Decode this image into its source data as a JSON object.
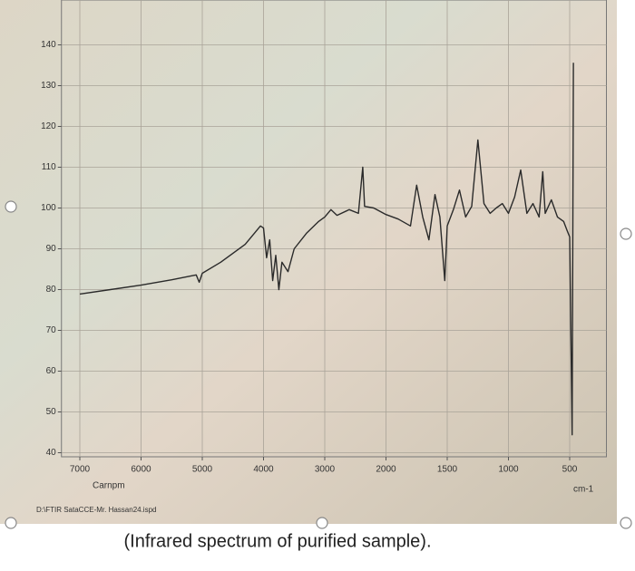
{
  "chart_data": {
    "type": "line",
    "x_label": "Carnpm",
    "x_unit": "cm-1",
    "file_label": "D:\\FTIR SataCCE-Mr. Hassan24.ispd",
    "caption": "(Infrared spectrum of purified sample).",
    "xlim": [
      7300,
      200
    ],
    "xticks": [
      7000,
      6000,
      5000,
      4000,
      3000,
      2000,
      1500,
      1000,
      500
    ],
    "ylim": [
      39,
      151
    ],
    "yticks": [
      40,
      50,
      60,
      70,
      80,
      90,
      100,
      110,
      120,
      130,
      140
    ],
    "grid": true,
    "color": "#2a2a2a",
    "x": [
      7000,
      6500,
      6000,
      5500,
      5100,
      5050,
      5000,
      4700,
      4300,
      4050,
      4000,
      3950,
      3900,
      3850,
      3800,
      3750,
      3700,
      3600,
      3500,
      3300,
      3100,
      3000,
      2900,
      2800,
      2600,
      2450,
      2380,
      2350,
      2200,
      2000,
      1900,
      1800,
      1750,
      1700,
      1650,
      1600,
      1560,
      1520,
      1500,
      1450,
      1400,
      1350,
      1300,
      1250,
      1200,
      1150,
      1100,
      1050,
      1000,
      950,
      900,
      850,
      800,
      750,
      720,
      700,
      650,
      600,
      550,
      520,
      500,
      480,
      470
    ],
    "values": [
      78.9,
      80,
      81.1,
      82.4,
      83.6,
      81.8,
      84,
      86.7,
      91.1,
      95.6,
      95.1,
      87.8,
      92.2,
      82.2,
      88.4,
      80,
      86.7,
      84.4,
      90,
      93.8,
      96.7,
      97.8,
      99.6,
      98.2,
      99.6,
      98.7,
      110,
      100.4,
      100,
      98.4,
      97.3,
      95.6,
      105.6,
      97.8,
      92.2,
      103.3,
      97.8,
      82.2,
      95.6,
      99.6,
      104.4,
      97.8,
      100.4,
      116.7,
      101.1,
      98.7,
      100,
      101.1,
      98.7,
      102.7,
      109.3,
      98.7,
      101.1,
      97.8,
      108.9,
      98.7,
      102,
      97.8,
      96.7,
      94.4,
      92.9,
      44.4,
      135.6
    ]
  }
}
